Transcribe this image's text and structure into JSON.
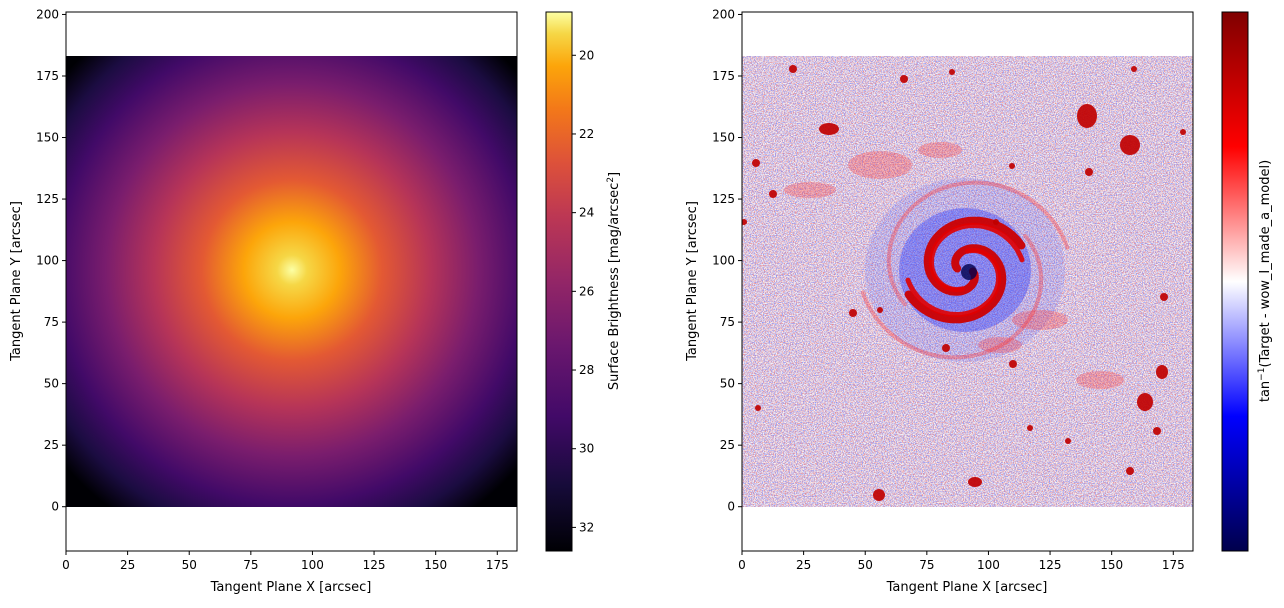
{
  "chart_data": [
    {
      "type": "heatmap",
      "title": "",
      "xlabel": "Tangent Plane X [arcsec]",
      "ylabel": "Tangent Plane Y [arcsec]",
      "xlim": [
        0,
        183
      ],
      "ylim": [
        -18,
        201
      ],
      "image_extent": {
        "x": [
          0,
          183
        ],
        "y": [
          0,
          183
        ]
      },
      "xticks": [
        0,
        25,
        50,
        75,
        100,
        125,
        150,
        175
      ],
      "yticks": [
        0,
        25,
        50,
        75,
        100,
        125,
        150,
        175,
        200
      ],
      "center": {
        "x": 92,
        "y": 95
      },
      "colormap": "inferno",
      "colorbar": {
        "label": "Surface Brightness [mag/arcsec",
        "label_sup": "2",
        "label_end": "]",
        "range": [
          32.6,
          18.9
        ],
        "ticks": [
          20,
          22,
          24,
          26,
          28,
          30,
          32
        ]
      }
    },
    {
      "type": "heatmap",
      "title": "",
      "xlabel": "Tangent Plane X [arcsec]",
      "ylabel": "Tangent Plane Y [arcsec]",
      "xlim": [
        0,
        183
      ],
      "ylim": [
        -18,
        201
      ],
      "image_extent": {
        "x": [
          0,
          183
        ],
        "y": [
          0,
          183
        ]
      },
      "xticks": [
        0,
        25,
        50,
        75,
        100,
        125,
        150,
        175
      ],
      "yticks": [
        0,
        25,
        50,
        75,
        100,
        125,
        150,
        175,
        200
      ],
      "colormap": "seismic",
      "colorbar": {
        "label_prefix": "tan",
        "label_sup": "−1",
        "label_rest": "(Target - wow_I_made_a_model)",
        "ticks": []
      }
    }
  ]
}
